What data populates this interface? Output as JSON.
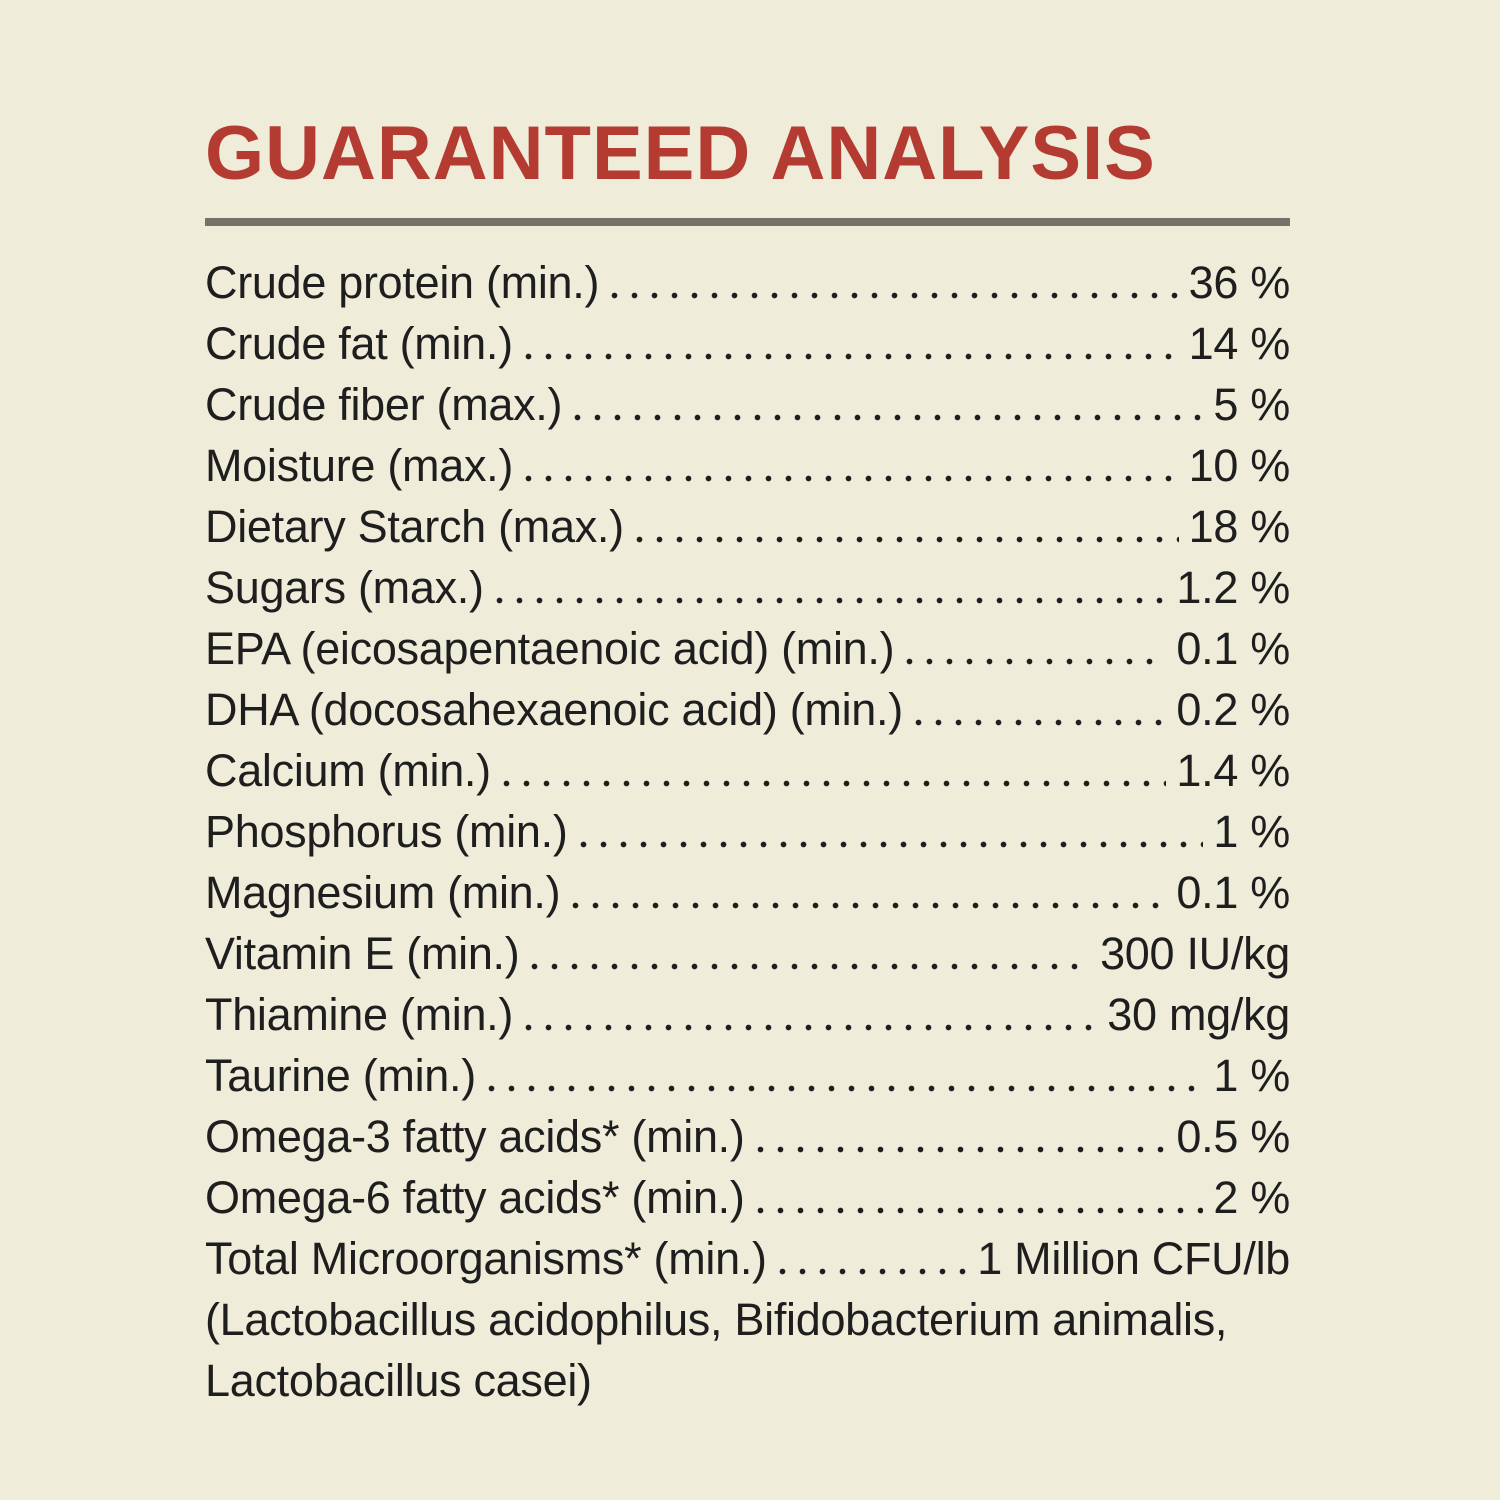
{
  "colors": {
    "background": "#efecd9",
    "title": "#b43b31",
    "rule": "#76726a",
    "text": "#1e1e1e"
  },
  "header": {
    "title": "GUARANTEED ANALYSIS"
  },
  "table": {
    "rows": [
      {
        "label": "Crude protein (min.)",
        "value": "36 %"
      },
      {
        "label": "Crude fat (min.)",
        "value": "14 %"
      },
      {
        "label": "Crude fiber (max.)",
        "value": "5 %"
      },
      {
        "label": "Moisture (max.)",
        "value": "10 %"
      },
      {
        "label": "Dietary Starch (max.)",
        "value": "18 %"
      },
      {
        "label": "Sugars (max.)",
        "value": "1.2 %"
      },
      {
        "label": "EPA (eicosapentaenoic acid) (min.)",
        "value": "0.1 %"
      },
      {
        "label": "DHA (docosahexaenoic acid) (min.)",
        "value": "0.2 %"
      },
      {
        "label": "Calcium (min.)",
        "value": "1.4 %"
      },
      {
        "label": "Phosphorus (min.)",
        "value": "1 %"
      },
      {
        "label": "Magnesium (min.)",
        "value": "0.1 %"
      },
      {
        "label": "Vitamin E (min.)",
        "value": "300 IU/kg"
      },
      {
        "label": "Thiamine (min.)",
        "value": "30 mg/kg"
      },
      {
        "label": "Taurine (min.)",
        "value": "1 %"
      },
      {
        "label": "Omega-3 fatty acids* (min.)",
        "value": "0.5 %"
      },
      {
        "label": "Omega-6 fatty acids* (min.)",
        "value": "2 %"
      },
      {
        "label": "Total Microorganisms* (min.)",
        "value": "1 Million CFU/lb"
      }
    ],
    "note_lines": [
      "(Lactobacillus acidophilus, Bifidobacterium animalis,",
      "Lactobacillus casei)"
    ]
  }
}
